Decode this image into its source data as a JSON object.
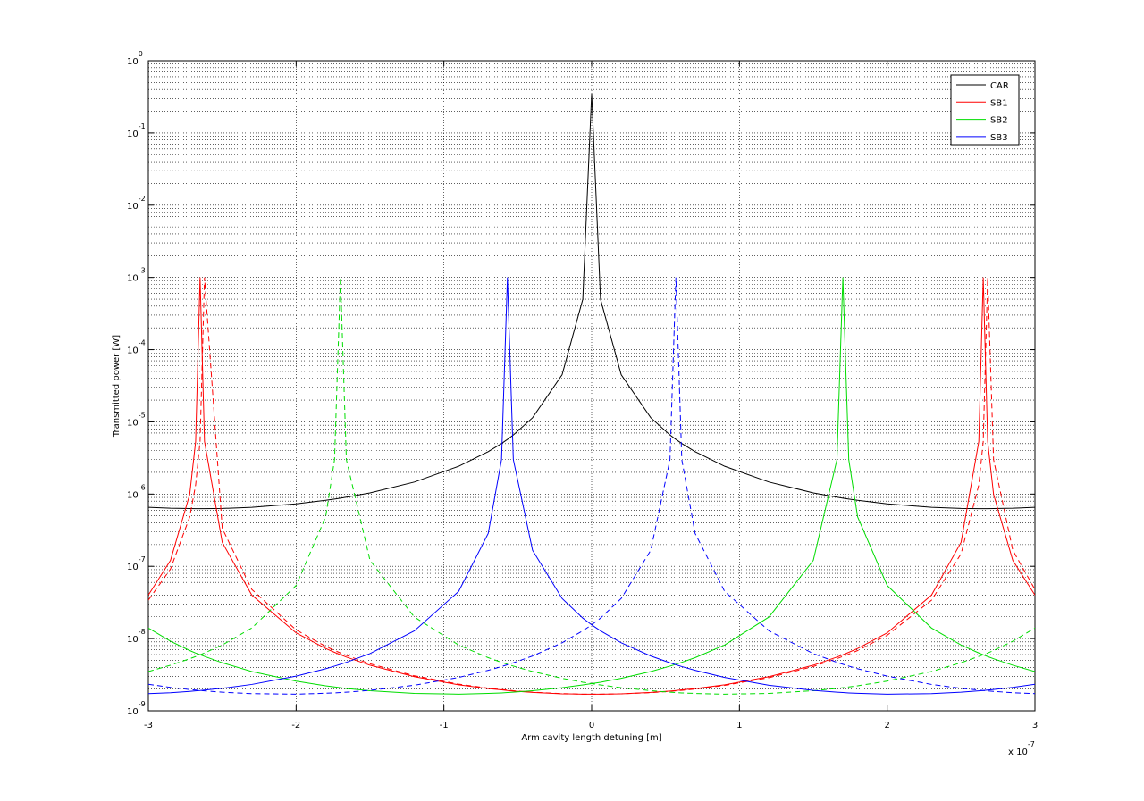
{
  "chart_data": {
    "type": "line",
    "x_label": "Arm cavity length detuning [m]",
    "y_label": "Transmitted power [W]",
    "x_scale_label": "x 10^-7",
    "yscale": "log",
    "grid": true,
    "minor_grid": true,
    "legend_position": "northeast",
    "xlim": [
      -3,
      3
    ],
    "xticks": [
      -3,
      -2,
      -1,
      0,
      1,
      2,
      3
    ],
    "ylim": [
      1e-09,
      1
    ],
    "yticks": [
      {
        "value": 1,
        "label": "10^0"
      },
      {
        "value": 0.1,
        "label": "10^-1"
      },
      {
        "value": 0.01,
        "label": "10^-2"
      },
      {
        "value": 0.001,
        "label": "10^-3"
      },
      {
        "value": 0.0001,
        "label": "10^-4"
      },
      {
        "value": 1e-05,
        "label": "10^-5"
      },
      {
        "value": 1e-06,
        "label": "10^-6"
      },
      {
        "value": 1e-07,
        "label": "10^-7"
      },
      {
        "value": 1e-08,
        "label": "10^-8"
      },
      {
        "value": 1e-09,
        "label": "10^-9"
      }
    ],
    "x": [
      -3,
      -2.85,
      -2.72,
      -2.68,
      -2.65,
      -2.62,
      -2.5,
      -2.3,
      -2,
      -1.8,
      -1.74,
      -1.7,
      -1.66,
      -1.5,
      -1.2,
      -0.9,
      -0.7,
      -0.61,
      -0.57,
      -0.53,
      -0.4,
      -0.2,
      -0.06,
      0,
      0.06,
      0.2,
      0.4,
      0.53,
      0.57,
      0.61,
      0.7,
      0.9,
      1.2,
      1.5,
      1.66,
      1.7,
      1.74,
      1.8,
      2,
      2.3,
      2.5,
      2.62,
      2.65,
      2.68,
      2.72,
      2.85,
      3
    ],
    "series": [
      {
        "name": "CAR",
        "color": "#000000",
        "values": [
          6.57e-07,
          6.37e-07,
          6.3e-07,
          6.28e-07,
          6.28e-07,
          6.28e-07,
          6.33e-07,
          6.56e-07,
          7.32e-07,
          8.2e-07,
          8.54e-07,
          8.78e-07,
          9.06e-07,
          1.04e-06,
          1.47e-06,
          2.43e-06,
          3.87e-06,
          5.02e-06,
          5.72e-06,
          6.58e-06,
          1.14e-05,
          4.5e-05,
          0.000498,
          0.35,
          0.000498,
          4.5e-05,
          1.14e-05,
          6.58e-06,
          5.72e-06,
          5.02e-06,
          3.87e-06,
          2.43e-06,
          1.47e-06,
          1.04e-06,
          9.06e-07,
          8.78e-07,
          8.54e-07,
          8.2e-07,
          7.32e-07,
          6.56e-07,
          6.33e-07,
          6.28e-07,
          6.28e-07,
          6.28e-07,
          6.3e-07,
          6.37e-07,
          6.57e-07
        ]
      },
      {
        "name": "SB1",
        "color": "#ff0000",
        "values": [
          4e-08,
          1.21e-07,
          9.9e-07,
          5.35e-06,
          0.001,
          5.35e-06,
          2.15e-07,
          4e-08,
          1.2e-08,
          7.3e-09,
          6.45e-09,
          5.97e-09,
          5.55e-09,
          4.28e-09,
          2.97e-09,
          2.29e-09,
          2.03e-09,
          1.95e-09,
          1.91e-09,
          1.88e-09,
          1.8e-09,
          1.72e-09,
          1.7e-09,
          1.7e-09,
          1.7e-09,
          1.72e-09,
          1.8e-09,
          1.88e-09,
          1.91e-09,
          1.95e-09,
          2.03e-09,
          2.29e-09,
          2.97e-09,
          4.28e-09,
          5.55e-09,
          5.97e-09,
          6.45e-09,
          7.3e-09,
          1.2e-08,
          4e-08,
          2.15e-07,
          5.35e-06,
          0.001,
          5.35e-06,
          9.9e-07,
          1.21e-07,
          4e-08
        ],
        "dashed_values": [
          3.4e-08,
          9.2e-08,
          4.84e-07,
          1.34e-06,
          5.35e-06,
          0.001,
          3.36e-07,
          4.79e-08,
          1.32e-08,
          7.8e-09,
          6.86e-09,
          6.32e-09,
          5.86e-09,
          4.48e-09,
          3.06e-09,
          2.34e-09,
          2.06e-09,
          1.97e-09,
          1.94e-09,
          1.9e-09,
          1.81e-09,
          1.73e-09,
          1.7e-09,
          1.7e-09,
          1.7e-09,
          1.72e-09,
          1.78e-09,
          1.86e-09,
          1.89e-09,
          1.92e-09,
          2e-09,
          2.25e-09,
          2.88e-09,
          4.11e-09,
          5.28e-09,
          5.67e-09,
          6.08e-09,
          6.83e-09,
          1.11e-08,
          3.4e-08,
          1.49e-07,
          1.34e-06,
          5.35e-06,
          0.001,
          3e-06,
          1.67e-07,
          4.79e-08
        ]
      },
      {
        "name": "SB2",
        "color": "#00dd00",
        "values": [
          1.4e-08,
          9.2e-09,
          6.83e-09,
          6.31e-09,
          5.99e-09,
          5.67e-09,
          4.63e-09,
          3.5e-09,
          2.58e-09,
          2.22e-09,
          2.14e-09,
          2.09e-09,
          2.04e-09,
          1.9e-09,
          1.74e-09,
          1.7e-09,
          1.74e-09,
          1.77e-09,
          1.79e-09,
          1.81e-09,
          1.9e-09,
          2.09e-09,
          2.28e-09,
          2.38e-09,
          2.49e-09,
          2.82e-09,
          3.5e-09,
          4.16e-09,
          4.41e-09,
          4.69e-09,
          5.44e-09,
          8.14e-09,
          1.99e-08,
          1.21e-07,
          3e-06,
          0.001,
          3e-06,
          4.84e-07,
          5.43e-08,
          1.4e-08,
          8.14e-09,
          6.32e-09,
          5.97e-09,
          5.64e-09,
          5.26e-09,
          4.28e-09,
          3.5e-09
        ],
        "dashed_values": [
          3.5e-09,
          4.28e-09,
          5.26e-09,
          5.64e-09,
          5.97e-09,
          6.32e-09,
          8.14e-09,
          1.4e-08,
          5.43e-08,
          4.84e-07,
          3e-06,
          0.001,
          3e-06,
          1.21e-07,
          1.99e-08,
          8.14e-09,
          5.44e-09,
          4.69e-09,
          4.41e-09,
          4.16e-09,
          3.5e-09,
          2.82e-09,
          2.49e-09,
          2.38e-09,
          2.28e-09,
          2.09e-09,
          1.9e-09,
          1.81e-09,
          1.79e-09,
          1.77e-09,
          1.74e-09,
          1.7e-09,
          1.74e-09,
          1.9e-09,
          2.04e-09,
          2.09e-09,
          2.14e-09,
          2.22e-09,
          2.58e-09,
          3.5e-09,
          4.63e-09,
          5.67e-09,
          5.99e-09,
          6.31e-09,
          6.83e-09,
          9.2e-09,
          1.4e-08
        ]
      },
      {
        "name": "SB3",
        "color": "#0000ff",
        "values": [
          1.73e-09,
          1.78e-09,
          1.86e-09,
          1.89e-09,
          1.91e-09,
          1.94e-09,
          2.05e-09,
          2.32e-09,
          3.02e-09,
          3.83e-09,
          4.16e-09,
          4.41e-09,
          4.69e-09,
          6.19e-09,
          1.28e-08,
          4.5e-08,
          2.86e-07,
          3e-06,
          0.001,
          3e-06,
          1.67e-07,
          3.59e-08,
          1.92e-08,
          1.55e-08,
          1.28e-08,
          8.75e-09,
          5.74e-09,
          4.62e-09,
          4.35e-09,
          4.1e-09,
          3.64e-09,
          2.9e-09,
          2.26e-09,
          1.92e-09,
          1.81e-09,
          1.79e-09,
          1.77e-09,
          1.75e-09,
          1.7e-09,
          1.73e-09,
          1.81e-09,
          1.89e-09,
          1.91e-09,
          1.94e-09,
          1.97e-09,
          2.11e-09,
          2.33e-09
        ],
        "dashed_values": [
          2.33e-09,
          2.11e-09,
          1.97e-09,
          1.94e-09,
          1.91e-09,
          1.89e-09,
          1.81e-09,
          1.73e-09,
          1.7e-09,
          1.75e-09,
          1.77e-09,
          1.79e-09,
          1.81e-09,
          1.92e-09,
          2.26e-09,
          2.9e-09,
          3.64e-09,
          4.1e-09,
          4.35e-09,
          4.62e-09,
          5.74e-09,
          8.75e-09,
          1.28e-08,
          1.55e-08,
          1.92e-08,
          3.59e-08,
          1.67e-07,
          3e-06,
          0.001,
          3e-06,
          2.86e-07,
          4.5e-08,
          1.28e-08,
          6.19e-09,
          4.69e-09,
          4.41e-09,
          4.16e-09,
          3.83e-09,
          3.02e-09,
          2.32e-09,
          2.05e-09,
          1.94e-09,
          1.91e-09,
          1.89e-09,
          1.86e-09,
          1.78e-09,
          1.73e-09
        ]
      }
    ]
  }
}
